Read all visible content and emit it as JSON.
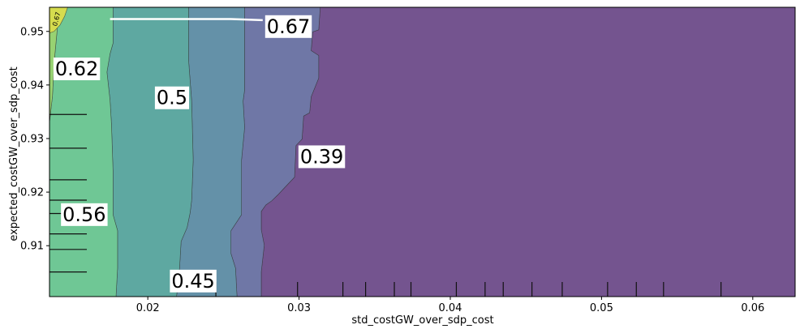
{
  "chart_data": {
    "type": "contour",
    "xlabel": "std_costGW_over_sdp_cost",
    "ylabel": "expected_costGW_over_sdp_cost",
    "xlim": [
      0.0135,
      0.0628
    ],
    "ylim": [
      0.9005,
      0.9545
    ],
    "x_ticks": [
      {
        "value": 0.02,
        "label": "0.02"
      },
      {
        "value": 0.03,
        "label": "0.03"
      },
      {
        "value": 0.04,
        "label": "0.04"
      },
      {
        "value": 0.05,
        "label": "0.05"
      },
      {
        "value": 0.06,
        "label": "0.06"
      }
    ],
    "y_ticks": [
      {
        "value": 0.91,
        "label": "0.91"
      },
      {
        "value": 0.92,
        "label": "0.92"
      },
      {
        "value": 0.93,
        "label": "0.93"
      },
      {
        "value": 0.94,
        "label": "0.94"
      },
      {
        "value": 0.95,
        "label": "0.95"
      }
    ],
    "levels": [
      0.39,
      0.45,
      0.5,
      0.56,
      0.62,
      0.67
    ],
    "bands": [
      {
        "name": "<0.39",
        "color": "#74548f",
        "boundary": [
          [
            0.0613,
            0.9545
          ],
          [
            0.0314,
            0.9545
          ],
          [
            0.0313,
            0.9503
          ],
          [
            0.0309,
            0.9499
          ],
          [
            0.0308,
            0.9464
          ],
          [
            0.0313,
            0.9455
          ],
          [
            0.0313,
            0.9413
          ],
          [
            0.0308,
            0.9378
          ],
          [
            0.0307,
            0.9348
          ],
          [
            0.0303,
            0.9342
          ],
          [
            0.0302,
            0.9299
          ],
          [
            0.0298,
            0.9287
          ],
          [
            0.0297,
            0.9228
          ],
          [
            0.029,
            0.9207
          ],
          [
            0.0286,
            0.9195
          ],
          [
            0.0282,
            0.9184
          ],
          [
            0.0278,
            0.9176
          ],
          [
            0.0275,
            0.9164
          ],
          [
            0.0275,
            0.913
          ],
          [
            0.0277,
            0.9101
          ],
          [
            0.0275,
            0.9051
          ],
          [
            0.0275,
            0.9005
          ],
          [
            0.0628,
            0.9005
          ],
          [
            0.0628,
            0.9545
          ]
        ]
      },
      {
        "name": "0.39-0.45",
        "color": "#6f77a6",
        "boundary": [
          [
            0.0314,
            0.9545
          ],
          [
            0.0264,
            0.9545
          ],
          [
            0.0264,
            0.9391
          ],
          [
            0.0263,
            0.937
          ],
          [
            0.0264,
            0.9321
          ],
          [
            0.0262,
            0.926
          ],
          [
            0.0262,
            0.9158
          ],
          [
            0.0255,
            0.9128
          ],
          [
            0.0255,
            0.9085
          ],
          [
            0.0258,
            0.9058
          ],
          [
            0.0259,
            0.9005
          ],
          [
            0.0275,
            0.9005
          ],
          [
            0.0275,
            0.9051
          ],
          [
            0.0277,
            0.9101
          ],
          [
            0.0275,
            0.913
          ],
          [
            0.0275,
            0.9164
          ],
          [
            0.0278,
            0.9176
          ],
          [
            0.0282,
            0.9184
          ],
          [
            0.0286,
            0.9195
          ],
          [
            0.029,
            0.9207
          ],
          [
            0.0297,
            0.9228
          ],
          [
            0.0298,
            0.9287
          ],
          [
            0.0302,
            0.9299
          ],
          [
            0.0303,
            0.9342
          ],
          [
            0.0307,
            0.9348
          ],
          [
            0.0308,
            0.9378
          ],
          [
            0.0313,
            0.9413
          ],
          [
            0.0313,
            0.9455
          ],
          [
            0.0308,
            0.9464
          ],
          [
            0.0309,
            0.9499
          ],
          [
            0.0313,
            0.9503
          ]
        ]
      },
      {
        "name": "0.45-0.5",
        "color": "#6491a8",
        "boundary": [
          [
            0.0264,
            0.9545
          ],
          [
            0.0227,
            0.9545
          ],
          [
            0.0227,
            0.9445
          ],
          [
            0.0229,
            0.937
          ],
          [
            0.023,
            0.926
          ],
          [
            0.0229,
            0.9185
          ],
          [
            0.0228,
            0.9162
          ],
          [
            0.0226,
            0.9134
          ],
          [
            0.0222,
            0.9108
          ],
          [
            0.0221,
            0.9058
          ],
          [
            0.0219,
            0.9005
          ],
          [
            0.0259,
            0.9005
          ],
          [
            0.0258,
            0.9058
          ],
          [
            0.0255,
            0.9085
          ],
          [
            0.0255,
            0.9128
          ],
          [
            0.0262,
            0.9158
          ],
          [
            0.0262,
            0.926
          ],
          [
            0.0264,
            0.9321
          ],
          [
            0.0263,
            0.937
          ],
          [
            0.0264,
            0.9391
          ]
        ]
      },
      {
        "name": "0.5-0.56",
        "color": "#5ea8a1",
        "boundary": [
          [
            0.0227,
            0.9545
          ],
          [
            0.0177,
            0.9545
          ],
          [
            0.0177,
            0.9478
          ],
          [
            0.0175,
            0.9458
          ],
          [
            0.0173,
            0.9424
          ],
          [
            0.0175,
            0.9372
          ],
          [
            0.0176,
            0.9326
          ],
          [
            0.0177,
            0.924
          ],
          [
            0.0177,
            0.9158
          ],
          [
            0.018,
            0.9128
          ],
          [
            0.018,
            0.9058
          ],
          [
            0.0179,
            0.9005
          ],
          [
            0.0219,
            0.9005
          ],
          [
            0.0221,
            0.9058
          ],
          [
            0.0222,
            0.9108
          ],
          [
            0.0226,
            0.9134
          ],
          [
            0.0228,
            0.9162
          ],
          [
            0.0229,
            0.9185
          ],
          [
            0.023,
            0.926
          ],
          [
            0.0229,
            0.937
          ],
          [
            0.0227,
            0.9445
          ]
        ]
      },
      {
        "name": "0.56-0.62",
        "color": "#6fc795",
        "boundary": [
          [
            0.0177,
            0.9545
          ],
          [
            0.014,
            0.9545
          ],
          [
            0.014,
            0.95
          ],
          [
            0.0138,
            0.944
          ],
          [
            0.0137,
            0.938
          ],
          [
            0.0135,
            0.933
          ],
          [
            0.0135,
            0.9005
          ],
          [
            0.0179,
            0.9005
          ],
          [
            0.018,
            0.9058
          ],
          [
            0.018,
            0.9128
          ],
          [
            0.0177,
            0.9158
          ],
          [
            0.0177,
            0.924
          ],
          [
            0.0176,
            0.9326
          ],
          [
            0.0175,
            0.9372
          ],
          [
            0.0173,
            0.9424
          ],
          [
            0.0175,
            0.9458
          ],
          [
            0.0177,
            0.9478
          ]
        ]
      },
      {
        "name": "0.62-0.67",
        "color": "#98d272",
        "boundary": [
          [
            0.014,
            0.9545
          ],
          [
            0.0135,
            0.9545
          ],
          [
            0.0135,
            0.933
          ],
          [
            0.0137,
            0.938
          ],
          [
            0.0138,
            0.944
          ],
          [
            0.014,
            0.95
          ]
        ]
      },
      {
        "name": ">0.67",
        "color": "#d6dc4e",
        "boundary": [
          [
            0.0135,
            0.9545
          ],
          [
            0.0147,
            0.9545
          ],
          [
            0.0145,
            0.9528
          ],
          [
            0.0142,
            0.9512
          ],
          [
            0.0138,
            0.95
          ],
          [
            0.0135,
            0.9497
          ]
        ]
      }
    ],
    "contour_labels": [
      {
        "text": "0.67",
        "x": 0.0293,
        "y": 0.9509
      },
      {
        "text": "0.62",
        "x": 0.0153,
        "y": 0.943
      },
      {
        "text": "0.5",
        "x": 0.0216,
        "y": 0.9376
      },
      {
        "text": "0.39",
        "x": 0.0315,
        "y": 0.9266
      },
      {
        "text": "0.56",
        "x": 0.0158,
        "y": 0.9158
      },
      {
        "text": "0.45",
        "x": 0.023,
        "y": 0.9034
      }
    ],
    "small_labels": [
      {
        "text": "0.67",
        "x": 0.0141,
        "y": 0.9522
      }
    ],
    "rug_x": [
      0.0245,
      0.0299,
      0.0329,
      0.0344,
      0.0363,
      0.0374,
      0.0404,
      0.0423,
      0.0435,
      0.0454,
      0.0474,
      0.0504,
      0.0523,
      0.0541,
      0.0579
    ],
    "rug_y": [
      0.9051,
      0.9093,
      0.9122,
      0.916,
      0.9185,
      0.9223,
      0.9282,
      0.9345
    ],
    "white_line": {
      "x": [
        0.0175,
        0.0255,
        0.0276
      ],
      "y": [
        0.9523,
        0.9523,
        0.9521
      ]
    }
  }
}
